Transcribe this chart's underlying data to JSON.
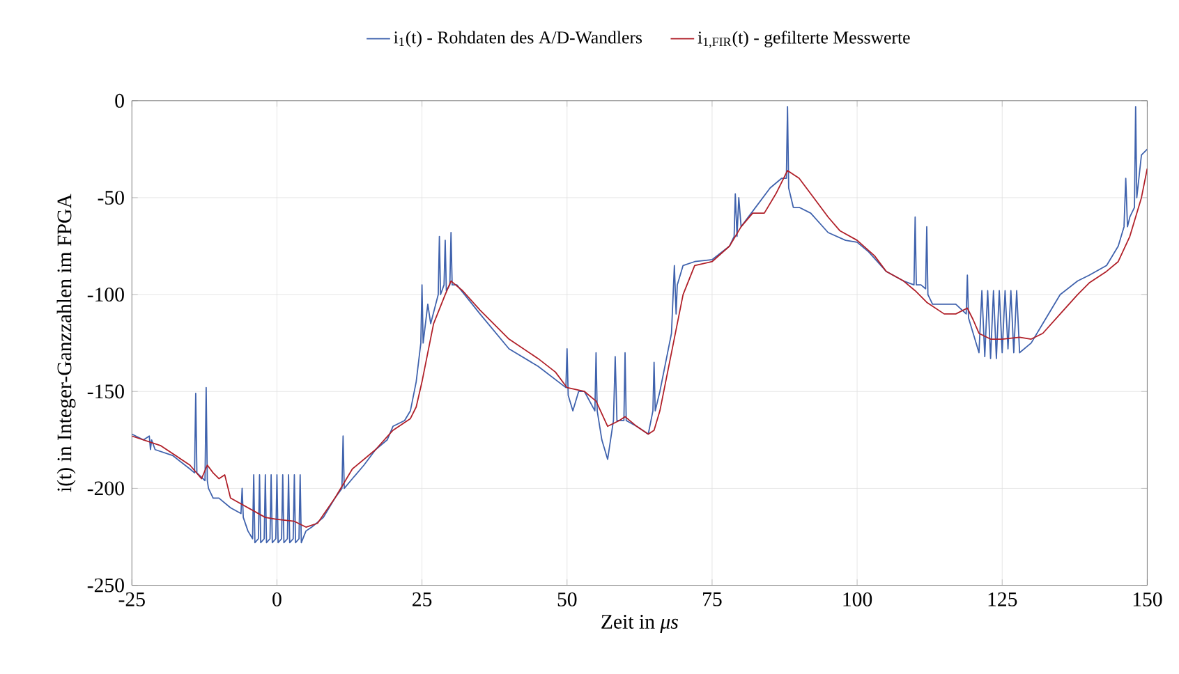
{
  "chart_data": {
    "type": "line",
    "xlabel": "Zeit in *μs*",
    "ylabel": "i(t) in Integer-Ganzzahlen im FPGA",
    "xlim": [
      -25,
      150
    ],
    "ylim": [
      -250,
      0
    ],
    "xticks": [
      -25,
      0,
      25,
      50,
      75,
      100,
      125,
      150
    ],
    "yticks": [
      -250,
      -200,
      -150,
      -100,
      -50,
      0
    ],
    "grid": true,
    "legend": "top",
    "series": [
      {
        "name": "i$_{1}$(t) - Rohdaten des A/D-Wandlers",
        "color": "#3f62ad",
        "x": [
          -25,
          -23,
          -22,
          -21.8,
          -21.6,
          -21,
          -18,
          -15,
          -14.2,
          -14,
          -13.8,
          -12.4,
          -12.2,
          -12,
          -11.8,
          -11,
          -10,
          -8,
          -6.2,
          -6,
          -5.8,
          -5,
          -4.2,
          -4,
          -3.8,
          -3.2,
          -3,
          -2.8,
          -2.2,
          -2,
          -1.8,
          -1.2,
          -1,
          -0.8,
          -0.2,
          0,
          0.2,
          0.8,
          1,
          1.2,
          1.8,
          2,
          2.2,
          2.8,
          3,
          3.2,
          3.8,
          4,
          4.2,
          5,
          6,
          8,
          10,
          11.2,
          11.4,
          11.6,
          13,
          15,
          17,
          19,
          20,
          22,
          23,
          24,
          24.8,
          25,
          25.2,
          26,
          26.5,
          27.8,
          28,
          28.2,
          28.8,
          29,
          29.2,
          29.8,
          30,
          30.2,
          31,
          35,
          40,
          45,
          49.8,
          50,
          50.2,
          51,
          52,
          53,
          54.8,
          55,
          55.2,
          56,
          57,
          58,
          58.3,
          58.6,
          59.8,
          60,
          60.2,
          62,
          64,
          64.8,
          65,
          65.2,
          66,
          68,
          68.5,
          68.8,
          69,
          70,
          72,
          75,
          78,
          78.8,
          79,
          79.3,
          79.6,
          80,
          82,
          85,
          87,
          87.8,
          88,
          88.2,
          89,
          90,
          92,
          95,
          98,
          100,
          102,
          105,
          108,
          109.8,
          110,
          110.2,
          111,
          111.8,
          112,
          112.2,
          113,
          115,
          117,
          118.8,
          119,
          119.2,
          120,
          121,
          121.5,
          122,
          122.5,
          123,
          123.5,
          124,
          124.5,
          125,
          125.5,
          126,
          126.5,
          127,
          127.5,
          128,
          130,
          132,
          135,
          138,
          140,
          143,
          145,
          146,
          146.3,
          146.6,
          147,
          147.8,
          148,
          148.2,
          149,
          150
        ],
        "values": [
          -172,
          -175,
          -173,
          -180,
          -175,
          -180,
          -183,
          -190,
          -192,
          -151,
          -192,
          -196,
          -148,
          -196,
          -200,
          -205,
          -205,
          -210,
          -213,
          -200,
          -215,
          -222,
          -226,
          -193,
          -228,
          -226,
          -193,
          -228,
          -226,
          -193,
          -228,
          -226,
          -193,
          -228,
          -226,
          -193,
          -228,
          -226,
          -193,
          -228,
          -226,
          -193,
          -228,
          -226,
          -193,
          -228,
          -226,
          -193,
          -228,
          -222,
          -220,
          -215,
          -205,
          -200,
          -173,
          -200,
          -195,
          -188,
          -180,
          -175,
          -168,
          -165,
          -160,
          -145,
          -125,
          -95,
          -125,
          -105,
          -115,
          -100,
          -70,
          -100,
          -95,
          -72,
          -98,
          -95,
          -68,
          -95,
          -95,
          -110,
          -128,
          -137,
          -148,
          -128,
          -152,
          -160,
          -150,
          -150,
          -160,
          -130,
          -160,
          -175,
          -185,
          -165,
          -132,
          -165,
          -165,
          -130,
          -165,
          -168,
          -172,
          -160,
          -135,
          -160,
          -150,
          -120,
          -85,
          -110,
          -95,
          -85,
          -83,
          -82,
          -75,
          -70,
          -48,
          -70,
          -50,
          -65,
          -57,
          -45,
          -40,
          -40,
          -3,
          -45,
          -55,
          -55,
          -58,
          -68,
          -72,
          -73,
          -78,
          -88,
          -93,
          -95,
          -60,
          -95,
          -95,
          -97,
          -65,
          -100,
          -105,
          -105,
          -105,
          -110,
          -90,
          -112,
          -120,
          -130,
          -98,
          -132,
          -98,
          -133,
          -98,
          -133,
          -98,
          -130,
          -98,
          -128,
          -98,
          -130,
          -98,
          -130,
          -125,
          -115,
          -100,
          -93,
          -90,
          -85,
          -75,
          -65,
          -40,
          -65,
          -60,
          -55,
          -3,
          -50,
          -28,
          -25
        ]
      },
      {
        "name": "i$_{1,FIR}$(t) - gefilterte Messwerte",
        "color": "#b01f28",
        "x": [
          -25,
          -20,
          -15,
          -13,
          -12,
          -11,
          -10,
          -9,
          -8,
          -5,
          -2,
          0,
          3,
          5,
          7,
          10,
          13,
          17,
          20,
          23,
          24,
          25,
          27,
          29,
          30,
          32,
          35,
          40,
          45,
          48,
          50,
          53,
          55,
          57,
          59,
          60,
          62,
          64,
          65,
          66,
          68,
          70,
          72,
          75,
          78,
          80,
          82,
          84,
          86,
          88,
          90,
          92,
          95,
          97,
          100,
          103,
          105,
          108,
          110,
          112,
          115,
          117,
          119,
          120,
          121,
          123,
          125,
          128,
          130,
          132,
          135,
          138,
          140,
          143,
          145,
          147,
          149,
          150
        ],
        "values": [
          -173,
          -178,
          -188,
          -195,
          -188,
          -192,
          -195,
          -193,
          -205,
          -210,
          -215,
          -216,
          -217,
          -220,
          -218,
          -205,
          -190,
          -180,
          -170,
          -164,
          -158,
          -145,
          -115,
          -100,
          -93,
          -98,
          -108,
          -123,
          -133,
          -140,
          -148,
          -150,
          -155,
          -168,
          -165,
          -163,
          -168,
          -172,
          -170,
          -160,
          -130,
          -100,
          -85,
          -83,
          -75,
          -65,
          -58,
          -58,
          -48,
          -36,
          -40,
          -48,
          -60,
          -67,
          -72,
          -80,
          -88,
          -93,
          -98,
          -104,
          -110,
          -110,
          -107,
          -113,
          -120,
          -123,
          -123,
          -122,
          -123,
          -120,
          -110,
          -100,
          -94,
          -88,
          -83,
          -70,
          -50,
          -35
        ]
      }
    ]
  }
}
